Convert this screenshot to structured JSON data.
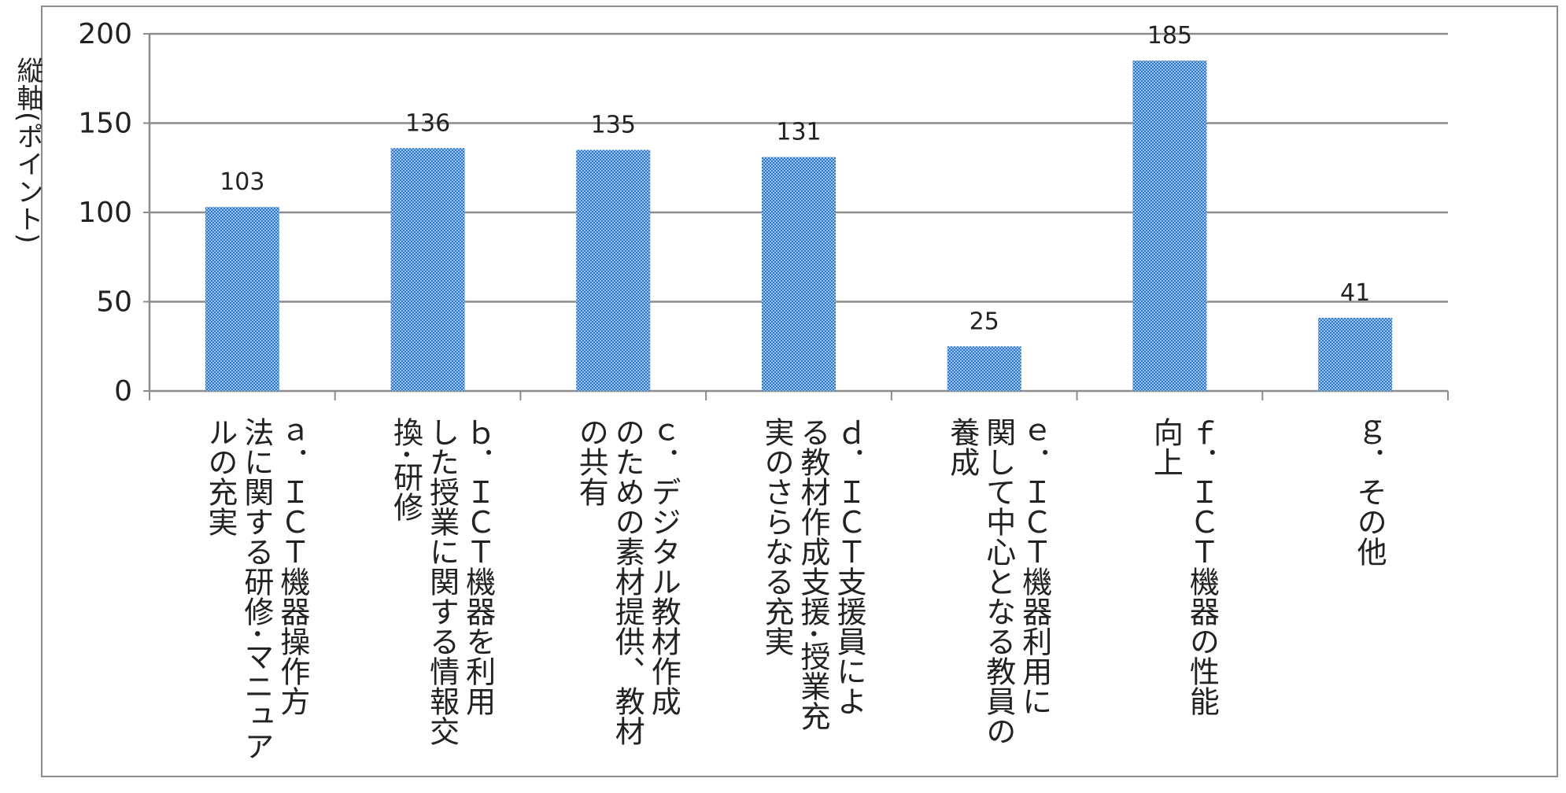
{
  "chart_data": {
    "type": "bar",
    "title": "",
    "ylabel": "縦軸(ポイント)",
    "xlabel": "",
    "ylim": [
      0,
      200
    ],
    "yticks": [
      0,
      50,
      100,
      150,
      200
    ],
    "grid": true,
    "legend": "none",
    "bar_color": "#4a90d9",
    "categories": [
      "a．ICT機器操作方法に関する研修・マニュアルの充実",
      "b．ICT機器を利用した授業に関する情報交換・研修",
      "c．デジタル教材作成のための素材提供、教材の共有",
      "d．ICT支援員による教材作成支援・授業充実のさらなる充実",
      "e．ICT機器利用に関して中心となる教員の養成",
      "f．ICT機器の性能向上",
      "g．その他"
    ],
    "category_lines": [
      [
        "ａ．ＩＣＴ機器操作方",
        "法に関する研修･マニュア",
        "ルの充実"
      ],
      [
        "ｂ．ＩＣＴ機器を利用",
        "した授業に関する情報交",
        "換･研修"
      ],
      [
        "ｃ．デジタル教材作成",
        "のための素材提供、教材",
        "の共有"
      ],
      [
        "ｄ．ＩＣＴ支援員によ",
        "る教材作成支援･授業充",
        "実のさらなる充実"
      ],
      [
        "ｅ．ＩＣＴ機器利用に",
        "関して中心となる教員の",
        "養成"
      ],
      [
        "ｆ．ＩＣＴ機器の性能",
        "向上"
      ],
      [
        "ｇ．その他"
      ]
    ],
    "values": [
      103,
      136,
      135,
      131,
      25,
      185,
      41
    ]
  }
}
